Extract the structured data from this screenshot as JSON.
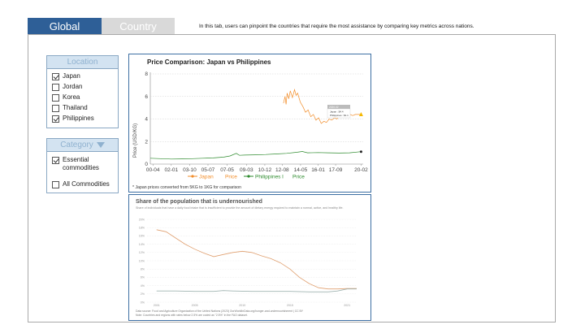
{
  "tabs": [
    {
      "label": "Global",
      "active": true
    },
    {
      "label": "Country",
      "active": false
    }
  ],
  "description": "In this tab, users can pinpoint the countries that require the most assistance by comparing key metrics across nations.",
  "location_filter": {
    "title": "Location",
    "items": [
      {
        "label": "Japan",
        "checked": true
      },
      {
        "label": "Jordan",
        "checked": false
      },
      {
        "label": "Korea",
        "checked": false
      },
      {
        "label": "Thailand",
        "checked": false
      },
      {
        "label": "Philippines",
        "checked": true
      }
    ]
  },
  "category_filter": {
    "title": "Category",
    "items": [
      {
        "label": "Essential commodities",
        "checked": true
      },
      {
        "label": "All Commodities",
        "checked": false
      }
    ]
  },
  "price_chart": {
    "title": "Price Comparison: Japan vs Philippines",
    "ylabel": "Price (USD/KG)",
    "footnote": "* Japan prices converted from 5KG to 1KG for comparison",
    "tooltip": {
      "date": "2020.02",
      "lines": [
        "Japan : $4.4",
        "Philippines : $1.1"
      ]
    },
    "legend": [
      {
        "label": "Japan",
        "suffix": "Price",
        "color": "#f28e2b"
      },
      {
        "label": "Philippines l",
        "suffix": "Price",
        "color": "#2e8b2e"
      }
    ],
    "colors": {
      "japan": "#f28e2b",
      "philippines": "#2e8b2e"
    }
  },
  "chart_data": [
    {
      "type": "line",
      "title": "Price Comparison: Japan vs Philippines",
      "ylabel": "Price (USD/KG)",
      "xlabel": "",
      "ylim": [
        0,
        8
      ],
      "yticks": [
        0,
        2,
        4,
        6,
        8
      ],
      "xlim": [
        2000,
        2020.3
      ],
      "x_tick_labels": [
        "00-04",
        "02-01",
        "03-10",
        "05-07",
        "07-05",
        "09-03",
        "10-12",
        "12-08",
        "14-05",
        "16-01",
        "17-09",
        "20-02"
      ],
      "x_tick_positions": [
        2000.25,
        2002.0,
        2003.75,
        2005.5,
        2007.33,
        2009.17,
        2010.92,
        2012.58,
        2014.33,
        2016.0,
        2017.67,
        2020.1
      ],
      "grid": "horizontal dashed",
      "legend_position": "bottom",
      "series": [
        {
          "name": "Japan Price",
          "color": "#f28e2b",
          "points": [
            [
              2012.7,
              5.4
            ],
            [
              2012.85,
              6.0
            ],
            [
              2012.95,
              5.3
            ],
            [
              2013.05,
              6.3
            ],
            [
              2013.2,
              5.8
            ],
            [
              2013.35,
              6.5
            ],
            [
              2013.55,
              5.9
            ],
            [
              2013.75,
              6.6
            ],
            [
              2013.9,
              6.1
            ],
            [
              2014.05,
              6.3
            ],
            [
              2014.3,
              5.5
            ],
            [
              2014.55,
              5.1
            ],
            [
              2014.8,
              4.6
            ],
            [
              2015.05,
              4.8
            ],
            [
              2015.3,
              4.2
            ],
            [
              2015.55,
              4.4
            ],
            [
              2015.8,
              3.9
            ],
            [
              2016.05,
              4.1
            ],
            [
              2016.3,
              3.6
            ],
            [
              2016.55,
              3.8
            ],
            [
              2016.8,
              3.7
            ],
            [
              2017.05,
              4.0
            ],
            [
              2017.3,
              3.9
            ],
            [
              2017.55,
              4.1
            ],
            [
              2017.8,
              4.0
            ],
            [
              2018.05,
              4.3
            ],
            [
              2018.3,
              4.2
            ],
            [
              2018.55,
              4.4
            ],
            [
              2018.8,
              4.3
            ],
            [
              2019.05,
              4.4
            ],
            [
              2019.3,
              4.3
            ],
            [
              2019.55,
              4.4
            ],
            [
              2020.1,
              4.4
            ]
          ]
        },
        {
          "name": "Philippines Price",
          "color": "#2e8b2e",
          "points": [
            [
              2000.0,
              0.52
            ],
            [
              2001.0,
              0.48
            ],
            [
              2002.0,
              0.45
            ],
            [
              2003.0,
              0.46
            ],
            [
              2004.0,
              0.48
            ],
            [
              2005.0,
              0.52
            ],
            [
              2006.0,
              0.55
            ],
            [
              2007.0,
              0.62
            ],
            [
              2007.6,
              0.72
            ],
            [
              2008.2,
              0.95
            ],
            [
              2008.5,
              0.78
            ],
            [
              2009.0,
              0.8
            ],
            [
              2010.0,
              0.82
            ],
            [
              2011.0,
              0.85
            ],
            [
              2012.0,
              0.9
            ],
            [
              2013.0,
              0.95
            ],
            [
              2014.0,
              1.05
            ],
            [
              2014.5,
              1.12
            ],
            [
              2015.0,
              1.0
            ],
            [
              2016.0,
              1.02
            ],
            [
              2017.0,
              1.0
            ],
            [
              2018.0,
              0.98
            ],
            [
              2019.0,
              1.0
            ],
            [
              2020.1,
              1.1
            ]
          ]
        }
      ]
    },
    {
      "type": "line",
      "title": "Share of the population that is undernourished",
      "subtitle": "Share of individuals that have a daily food intake that is insufficient to provide the amount of dietary energy required to maintain a normal, active, and healthy life.",
      "ylabel": "",
      "xlabel": "",
      "ylim": [
        0,
        20
      ],
      "yticks": [
        0,
        2,
        4,
        6,
        8,
        10,
        12,
        14,
        16,
        18,
        20
      ],
      "xlim": [
        2000,
        2022
      ],
      "xticks": [
        2001,
        2005,
        2010,
        2015,
        2021
      ],
      "series": [
        {
          "name": "",
          "color": "#e0a070",
          "points": [
            [
              2001,
              17.5
            ],
            [
              2002,
              17.0
            ],
            [
              2003,
              15.5
            ],
            [
              2004,
              14.0
            ],
            [
              2005,
              12.8
            ],
            [
              2006,
              11.8
            ],
            [
              2007,
              11.0
            ],
            [
              2008,
              11.5
            ],
            [
              2009,
              12.0
            ],
            [
              2010,
              12.3
            ],
            [
              2011,
              12.0
            ],
            [
              2012,
              11.2
            ],
            [
              2013,
              10.5
            ],
            [
              2014,
              9.5
            ],
            [
              2015,
              8.0
            ],
            [
              2016,
              6.0
            ],
            [
              2017,
              4.5
            ],
            [
              2018,
              3.5
            ],
            [
              2019,
              3.2
            ],
            [
              2020,
              3.2
            ],
            [
              2021,
              3.3
            ],
            [
              2022,
              3.3
            ]
          ]
        },
        {
          "name": "",
          "color": "#9fb3b0",
          "points": [
            [
              2001,
              2.7
            ],
            [
              2003,
              2.7
            ],
            [
              2005,
              2.6
            ],
            [
              2007,
              2.6
            ],
            [
              2008,
              2.8
            ],
            [
              2009,
              2.7
            ],
            [
              2011,
              2.6
            ],
            [
              2013,
              2.6
            ],
            [
              2015,
              2.6
            ],
            [
              2017,
              2.5
            ],
            [
              2019,
              2.5
            ],
            [
              2020,
              2.7
            ],
            [
              2021,
              3.2
            ],
            [
              2022,
              3.2
            ]
          ]
        }
      ],
      "source": "Data source: Food and Agriculture Organization of the United Nations (2023)      OurWorldInData.org/hunger-and-undernourishment | CC BY",
      "note": "Note: Countries and regions with rates below 2.5% are coded as \"2.5%\" in the FAO dataset."
    }
  ]
}
